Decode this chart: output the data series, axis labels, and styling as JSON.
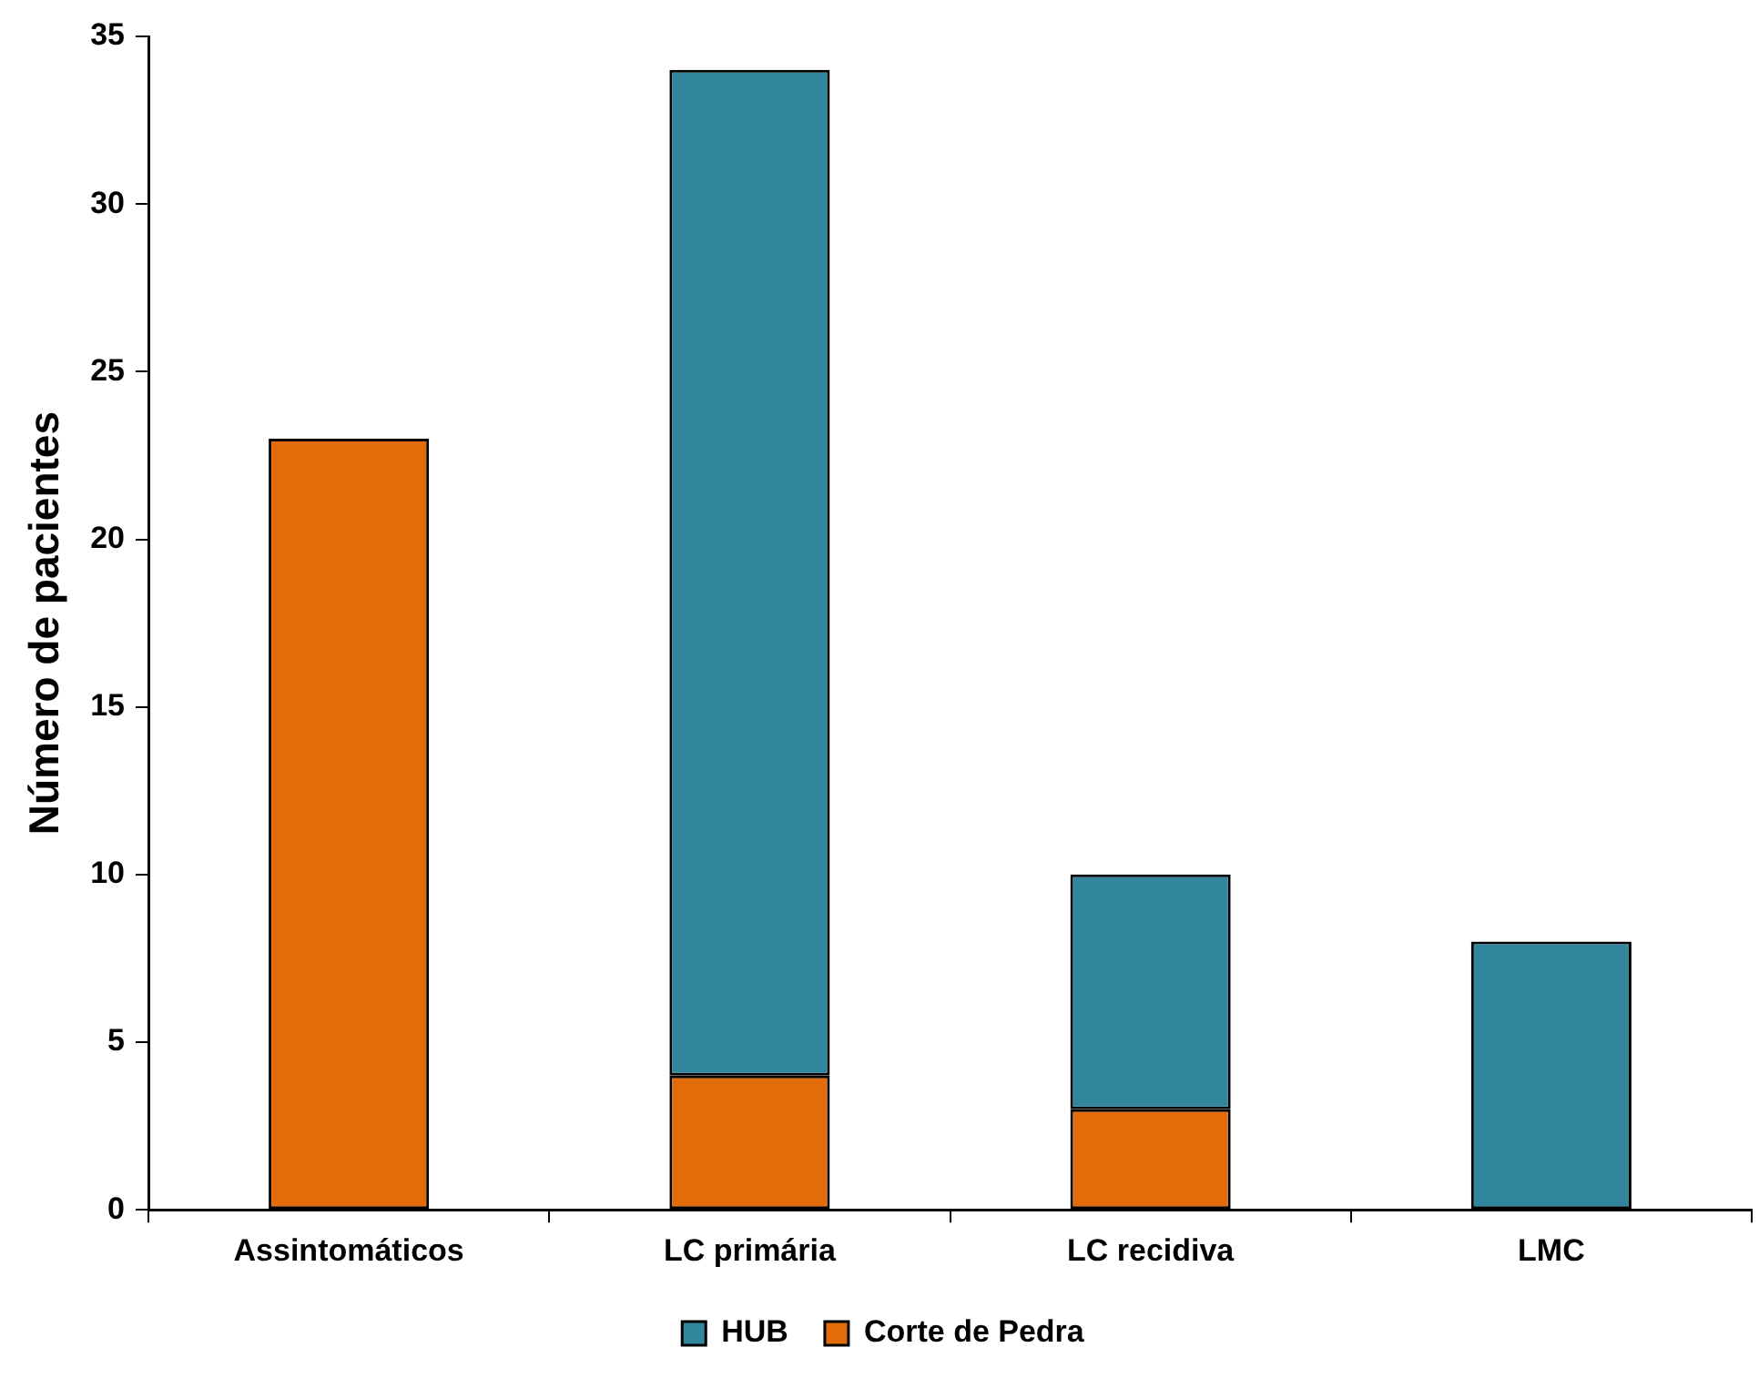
{
  "chart_data": {
    "type": "bar",
    "ylabel": "Número de pacientes",
    "categories": [
      "Assintomáticos",
      "LC primária",
      "LC recidiva",
      "LMC"
    ],
    "series": [
      {
        "name": "Corte de Pedra",
        "color": "#e36c0a",
        "values": [
          23,
          4,
          3,
          0
        ]
      },
      {
        "name": "HUB",
        "color": "#31859c",
        "values": [
          0,
          30,
          7,
          8
        ]
      }
    ],
    "stacked": true,
    "ylim": [
      0,
      35
    ],
    "yticks": [
      0,
      5,
      10,
      15,
      20,
      25,
      30,
      35
    ],
    "grid": false,
    "legend": "bottom"
  }
}
